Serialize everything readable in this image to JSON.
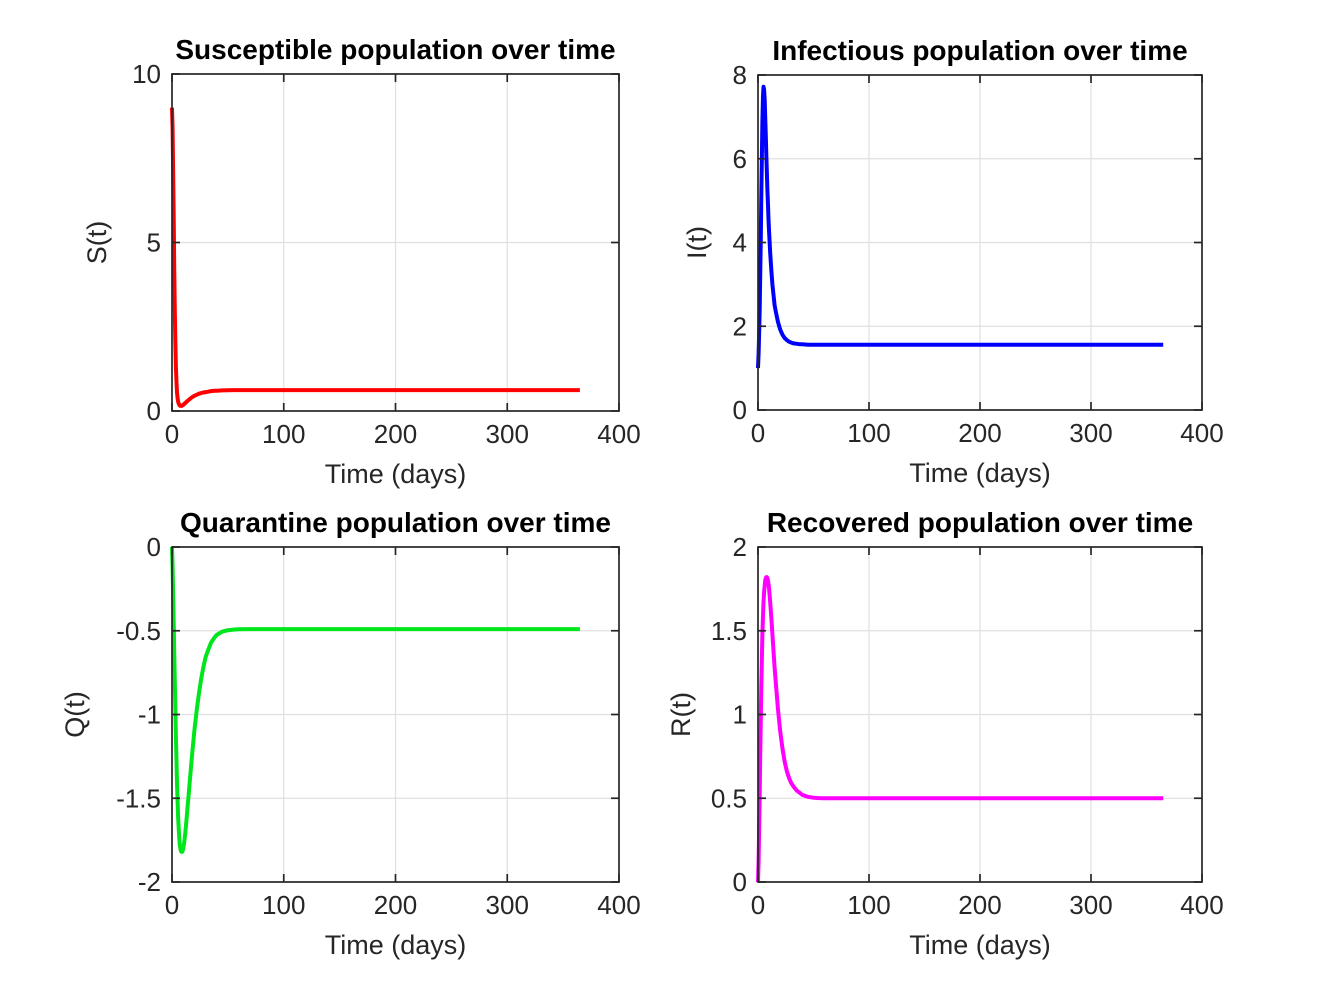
{
  "figure": {
    "background": "#ffffff",
    "axis_color": "#262626",
    "grid_color": "#e0e0e0",
    "title_color": "#000000",
    "tick_label_color": "#262626"
  },
  "chart_data": [
    {
      "type": "line",
      "id": "susceptible",
      "title": "Susceptible population over time",
      "xlabel": "Time (days)",
      "ylabel": "S(t)",
      "color": "#ff0000",
      "xlim": [
        0,
        400
      ],
      "ylim": [
        0,
        10
      ],
      "xticks": [
        0,
        100,
        200,
        300,
        400
      ],
      "yticks": [
        0,
        5,
        10
      ],
      "grid": true,
      "x": [
        0,
        0.5,
        1,
        1.5,
        2,
        2.5,
        3,
        3.5,
        4,
        4.5,
        5,
        5.5,
        6,
        6.5,
        7,
        7.5,
        8,
        8.5,
        9,
        9.5,
        10,
        11,
        12,
        13,
        14,
        15,
        16,
        18,
        20,
        22,
        24,
        26,
        28,
        30,
        32,
        35,
        38,
        40,
        45,
        50,
        55,
        60,
        70,
        80,
        100,
        120,
        150,
        200,
        250,
        300,
        365
      ],
      "y": [
        9.0,
        8.4,
        7.2,
        5.8,
        4.3,
        3.0,
        2.0,
        1.3,
        0.85,
        0.55,
        0.38,
        0.28,
        0.22,
        0.18,
        0.16,
        0.15,
        0.15,
        0.15,
        0.16,
        0.17,
        0.18,
        0.21,
        0.24,
        0.27,
        0.3,
        0.33,
        0.36,
        0.41,
        0.45,
        0.48,
        0.51,
        0.53,
        0.55,
        0.56,
        0.57,
        0.59,
        0.6,
        0.6,
        0.61,
        0.615,
        0.62,
        0.62,
        0.62,
        0.62,
        0.62,
        0.62,
        0.62,
        0.62,
        0.62,
        0.62,
        0.62
      ]
    },
    {
      "type": "line",
      "id": "infectious",
      "title": "Infectious population over time",
      "xlabel": "Time (days)",
      "ylabel": "I(t)",
      "color": "#0000ff",
      "xlim": [
        0,
        400
      ],
      "ylim": [
        0,
        8
      ],
      "xticks": [
        0,
        100,
        200,
        300,
        400
      ],
      "yticks": [
        0,
        2,
        4,
        6,
        8
      ],
      "grid": true,
      "x": [
        0,
        0.5,
        1,
        1.5,
        2,
        2.5,
        3,
        3.5,
        4,
        4.5,
        5,
        5.5,
        6,
        6.5,
        7,
        7.5,
        8,
        8.5,
        9,
        9.5,
        10,
        11,
        12,
        13,
        14,
        15,
        16,
        18,
        20,
        22,
        24,
        26,
        28,
        30,
        32,
        35,
        38,
        40,
        45,
        50,
        55,
        60,
        70,
        80,
        100,
        120,
        150,
        200,
        250,
        300,
        365
      ],
      "y": [
        1.0,
        1.35,
        1.8,
        2.4,
        3.2,
        4.1,
        5.1,
        6.1,
        6.9,
        7.5,
        7.72,
        7.65,
        7.4,
        7.0,
        6.55,
        6.1,
        5.65,
        5.25,
        4.9,
        4.55,
        4.25,
        3.75,
        3.35,
        3.0,
        2.75,
        2.5,
        2.35,
        2.1,
        1.92,
        1.8,
        1.72,
        1.67,
        1.63,
        1.61,
        1.59,
        1.58,
        1.57,
        1.57,
        1.56,
        1.56,
        1.56,
        1.56,
        1.56,
        1.56,
        1.56,
        1.56,
        1.56,
        1.56,
        1.56,
        1.56,
        1.56
      ]
    },
    {
      "type": "line",
      "id": "quarantine",
      "title": "Quarantine population over time",
      "xlabel": "Time (days)",
      "ylabel": "Q(t)",
      "color": "#00e61c",
      "xlim": [
        0,
        400
      ],
      "ylim": [
        -2,
        0
      ],
      "xticks": [
        0,
        100,
        200,
        300,
        400
      ],
      "yticks": [
        -2,
        -1.5,
        -1,
        -0.5,
        0
      ],
      "grid": true,
      "x": [
        0,
        0.5,
        1,
        1.5,
        2,
        2.5,
        3,
        3.5,
        4,
        4.5,
        5,
        5.5,
        6,
        6.5,
        7,
        7.5,
        8,
        8.5,
        9,
        9.5,
        10,
        11,
        12,
        13,
        14,
        15,
        16,
        18,
        20,
        22,
        24,
        26,
        28,
        30,
        32,
        35,
        38,
        40,
        45,
        50,
        55,
        60,
        70,
        80,
        100,
        120,
        150,
        200,
        250,
        300,
        365
      ],
      "y": [
        0,
        -0.12,
        -0.28,
        -0.45,
        -0.62,
        -0.8,
        -0.97,
        -1.13,
        -1.28,
        -1.41,
        -1.52,
        -1.61,
        -1.68,
        -1.74,
        -1.78,
        -1.8,
        -1.815,
        -1.82,
        -1.82,
        -1.815,
        -1.8,
        -1.76,
        -1.7,
        -1.63,
        -1.55,
        -1.47,
        -1.39,
        -1.24,
        -1.1,
        -0.98,
        -0.88,
        -0.79,
        -0.72,
        -0.66,
        -0.62,
        -0.57,
        -0.54,
        -0.525,
        -0.505,
        -0.497,
        -0.493,
        -0.491,
        -0.49,
        -0.49,
        -0.49,
        -0.49,
        -0.49,
        -0.49,
        -0.49,
        -0.49,
        -0.49
      ]
    },
    {
      "type": "line",
      "id": "recovered",
      "title": "Recovered population over time",
      "xlabel": "Time (days)",
      "ylabel": "R(t)",
      "color": "#ff00ff",
      "xlim": [
        0,
        400
      ],
      "ylim": [
        0,
        2
      ],
      "xticks": [
        0,
        100,
        200,
        300,
        400
      ],
      "yticks": [
        0,
        0.5,
        1,
        1.5,
        2
      ],
      "grid": true,
      "x": [
        0,
        0.5,
        1,
        1.5,
        2,
        2.5,
        3,
        3.5,
        4,
        4.5,
        5,
        5.5,
        6,
        6.5,
        7,
        7.5,
        8,
        8.5,
        9,
        9.5,
        10,
        11,
        12,
        13,
        14,
        15,
        16,
        18,
        20,
        22,
        24,
        26,
        28,
        30,
        32,
        35,
        38,
        40,
        45,
        50,
        55,
        60,
        70,
        80,
        100,
        120,
        150,
        200,
        250,
        300,
        365
      ],
      "y": [
        0,
        0.12,
        0.3,
        0.52,
        0.75,
        0.97,
        1.17,
        1.34,
        1.48,
        1.59,
        1.67,
        1.73,
        1.77,
        1.8,
        1.815,
        1.82,
        1.82,
        1.815,
        1.8,
        1.78,
        1.75,
        1.67,
        1.58,
        1.48,
        1.38,
        1.28,
        1.19,
        1.03,
        0.9,
        0.8,
        0.72,
        0.66,
        0.62,
        0.59,
        0.57,
        0.545,
        0.53,
        0.52,
        0.508,
        0.503,
        0.501,
        0.5,
        0.5,
        0.5,
        0.5,
        0.5,
        0.5,
        0.5,
        0.5,
        0.5,
        0.5
      ]
    }
  ]
}
